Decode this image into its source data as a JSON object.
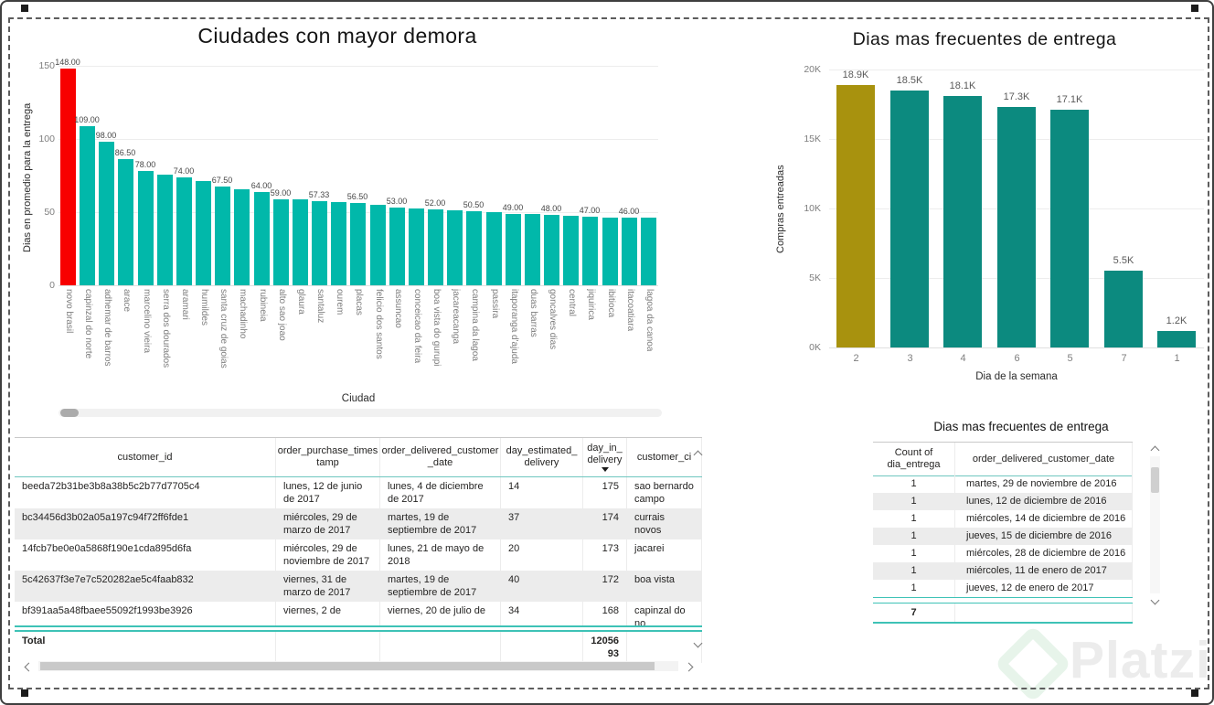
{
  "canvas": {
    "background": "#ffffff",
    "border_color": "#3f3f3f",
    "selection_border_color": "#5d5d5d"
  },
  "chart_data": [
    {
      "id": "ciudades",
      "type": "bar",
      "title": "Ciudades con mayor demora",
      "xlabel": "Ciudad",
      "ylabel": "Dias en promedio para la entrega",
      "ylim": [
        0,
        150
      ],
      "y_ticks": [
        "150",
        "100",
        "50",
        "0"
      ],
      "grid": true,
      "legend": "none",
      "bar_color": "#01B8AA",
      "highlight_index": 0,
      "highlight_color": "#F80000",
      "categories": [
        "novo brasil",
        "capinzal do norte",
        "adhemar de barros",
        "arace",
        "marcelino vieira",
        "serra dos dourados",
        "aramari",
        "humildes",
        "santa cruz de goias",
        "machadinho",
        "rubineia",
        "alto sao joao",
        "glaura",
        "santaluz",
        "ourem",
        "placas",
        "felicio dos santos",
        "assuncao",
        "conceicao da feira",
        "boa vista do gurupi",
        "jacareacanga",
        "campina da lagoa",
        "passira",
        "itaporanga d'ajuda",
        "duas barras",
        "goncalves dias",
        "central",
        "jiquirica",
        "ibitioca",
        "itacoatiara",
        "lagoa da canoa"
      ],
      "values": [
        148,
        109,
        98,
        86.5,
        78,
        75.5,
        74,
        71,
        67.5,
        65.5,
        64,
        59,
        58.5,
        57.33,
        57,
        56.5,
        55,
        53,
        52.5,
        52,
        51.5,
        50.5,
        50,
        49,
        48.5,
        48,
        47.5,
        47,
        46.5,
        46,
        46
      ],
      "labels": [
        "148.00",
        "109.00",
        "98.00",
        "86.50",
        "78.00",
        null,
        "74.00",
        null,
        "67.50",
        null,
        "64.00",
        "59.00",
        null,
        "57.33",
        null,
        "56.50",
        null,
        "53.00",
        null,
        "52.00",
        null,
        "50.50",
        null,
        "49.00",
        null,
        "48.00",
        null,
        "47.00",
        null,
        "46.00",
        null
      ]
    },
    {
      "id": "dias",
      "type": "bar",
      "title": "Dias mas frecuentes de entrega",
      "xlabel": "Dia de la semana",
      "ylabel": "Compras entreadas",
      "ylim": [
        0,
        20000
      ],
      "y_ticks": [
        "20K",
        "15K",
        "10K",
        "5K",
        "0K"
      ],
      "grid": true,
      "legend": "none",
      "bar_color": "#0C8A7F",
      "highlight_index": 0,
      "highlight_color": "#A8920E",
      "categories": [
        "2",
        "3",
        "4",
        "6",
        "5",
        "7",
        "1"
      ],
      "values": [
        18900,
        18500,
        18100,
        17300,
        17100,
        5500,
        1200
      ],
      "labels": [
        "18.9K",
        "18.5K",
        "18.1K",
        "17.3K",
        "17.1K",
        "5.5K",
        "1.2K"
      ]
    }
  ],
  "table_left": {
    "columns": [
      "customer_id",
      "order_purchase_times\ntamp",
      "order_delivered_customer\n_date",
      "day_estimated_\ndelivery",
      "day_in_\ndelivery",
      "customer_ci"
    ],
    "sort_column_index": 4,
    "rows": [
      [
        "beeda72b31be3b8a38b5c2b77d7705c4",
        "lunes, 12 de junio de 2017",
        "lunes, 4 de diciembre de 2017",
        "14",
        "175",
        "sao bernardo campo"
      ],
      [
        "bc34456d3b02a05a197c94f72ff6fde1",
        "miércoles, 29 de marzo de 2017",
        "martes, 19 de septiembre de 2017",
        "37",
        "174",
        "currais novos"
      ],
      [
        "14fcb7be0e0a5868f190e1cda895d6fa",
        "miércoles, 29 de noviembre de 2017",
        "lunes, 21 de mayo de 2018",
        "20",
        "173",
        "jacarei"
      ],
      [
        "5c42637f3e7e7c520282ae5c4faab832",
        "viernes, 31 de marzo de 2017",
        "martes, 19 de septiembre de 2017",
        "40",
        "172",
        "boa vista"
      ],
      [
        "bf391aa5a48fbaee55092f1993be3926",
        "viernes, 2 de",
        "viernes, 20 de julio de",
        "34",
        "168",
        "capinzal do no"
      ]
    ],
    "total_label": "Total",
    "total_value": "12056\n93"
  },
  "table_right": {
    "title": "Dias mas frecuentes de entrega",
    "columns": [
      "Count of\ndia_entrega",
      "order_delivered_customer_date"
    ],
    "rows": [
      [
        "1",
        "martes, 29 de noviembre de 2016"
      ],
      [
        "1",
        "lunes, 12 de diciembre de 2016"
      ],
      [
        "1",
        "miércoles, 14 de diciembre de 2016"
      ],
      [
        "1",
        "jueves, 15 de diciembre de 2016"
      ],
      [
        "1",
        "miércoles, 28 de diciembre de 2016"
      ],
      [
        "1",
        "miércoles, 11 de enero de 2017"
      ],
      [
        "1",
        "jueves, 12 de enero de 2017"
      ]
    ],
    "total": "7"
  },
  "watermark": {
    "text": "Platzi",
    "logo_color": "#E7F4EA",
    "text_color": "#ECECEC"
  }
}
